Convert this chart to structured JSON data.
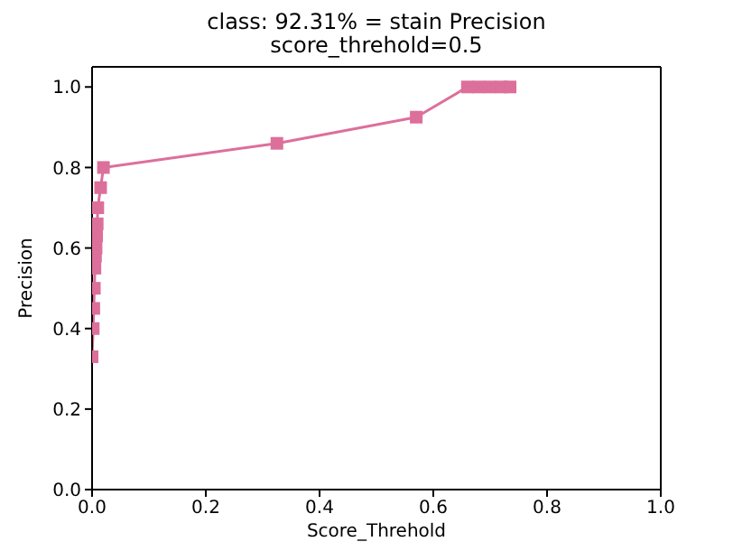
{
  "chart_data": {
    "type": "line",
    "title": "class: 92.31% = stain Precision",
    "subtitle": "score_threhold=0.5",
    "xlabel": "Score_Threhold",
    "ylabel": "Precision",
    "series": [
      {
        "color": "#dd6f9b",
        "x": [
          0.0,
          0.002,
          0.003,
          0.004,
          0.005,
          0.006,
          0.007,
          0.008,
          0.009,
          0.01,
          0.015,
          0.02,
          0.325,
          0.57,
          0.66,
          0.68,
          0.7,
          0.72,
          0.735
        ],
        "values": [
          0.33,
          0.4,
          0.45,
          0.5,
          0.55,
          0.58,
          0.6,
          0.63,
          0.66,
          0.7,
          0.75,
          0.8,
          0.86,
          0.925,
          1.0,
          1.0,
          1.0,
          1.0,
          1.0
        ]
      }
    ],
    "xlim": [
      0,
      1
    ],
    "ylim": [
      0,
      1.05
    ],
    "xticks": [
      {
        "value": 0,
        "label": "0.0"
      },
      {
        "value": 0.2,
        "label": "0.2"
      },
      {
        "value": 0.4,
        "label": "0.4"
      },
      {
        "value": 0.6,
        "label": "0.6"
      },
      {
        "value": 0.8,
        "label": "0.8"
      },
      {
        "value": 1,
        "label": "1.0"
      }
    ],
    "yticks": [
      {
        "value": 0,
        "label": "0.0"
      },
      {
        "value": 0.2,
        "label": "0.2"
      },
      {
        "value": 0.4,
        "label": "0.4"
      },
      {
        "value": 0.6,
        "label": "0.6"
      },
      {
        "value": 0.8,
        "label": "0.8"
      },
      {
        "value": 1,
        "label": "1.0"
      }
    ],
    "marker": "square",
    "line_style": "solid",
    "grid": false,
    "legend": false
  }
}
